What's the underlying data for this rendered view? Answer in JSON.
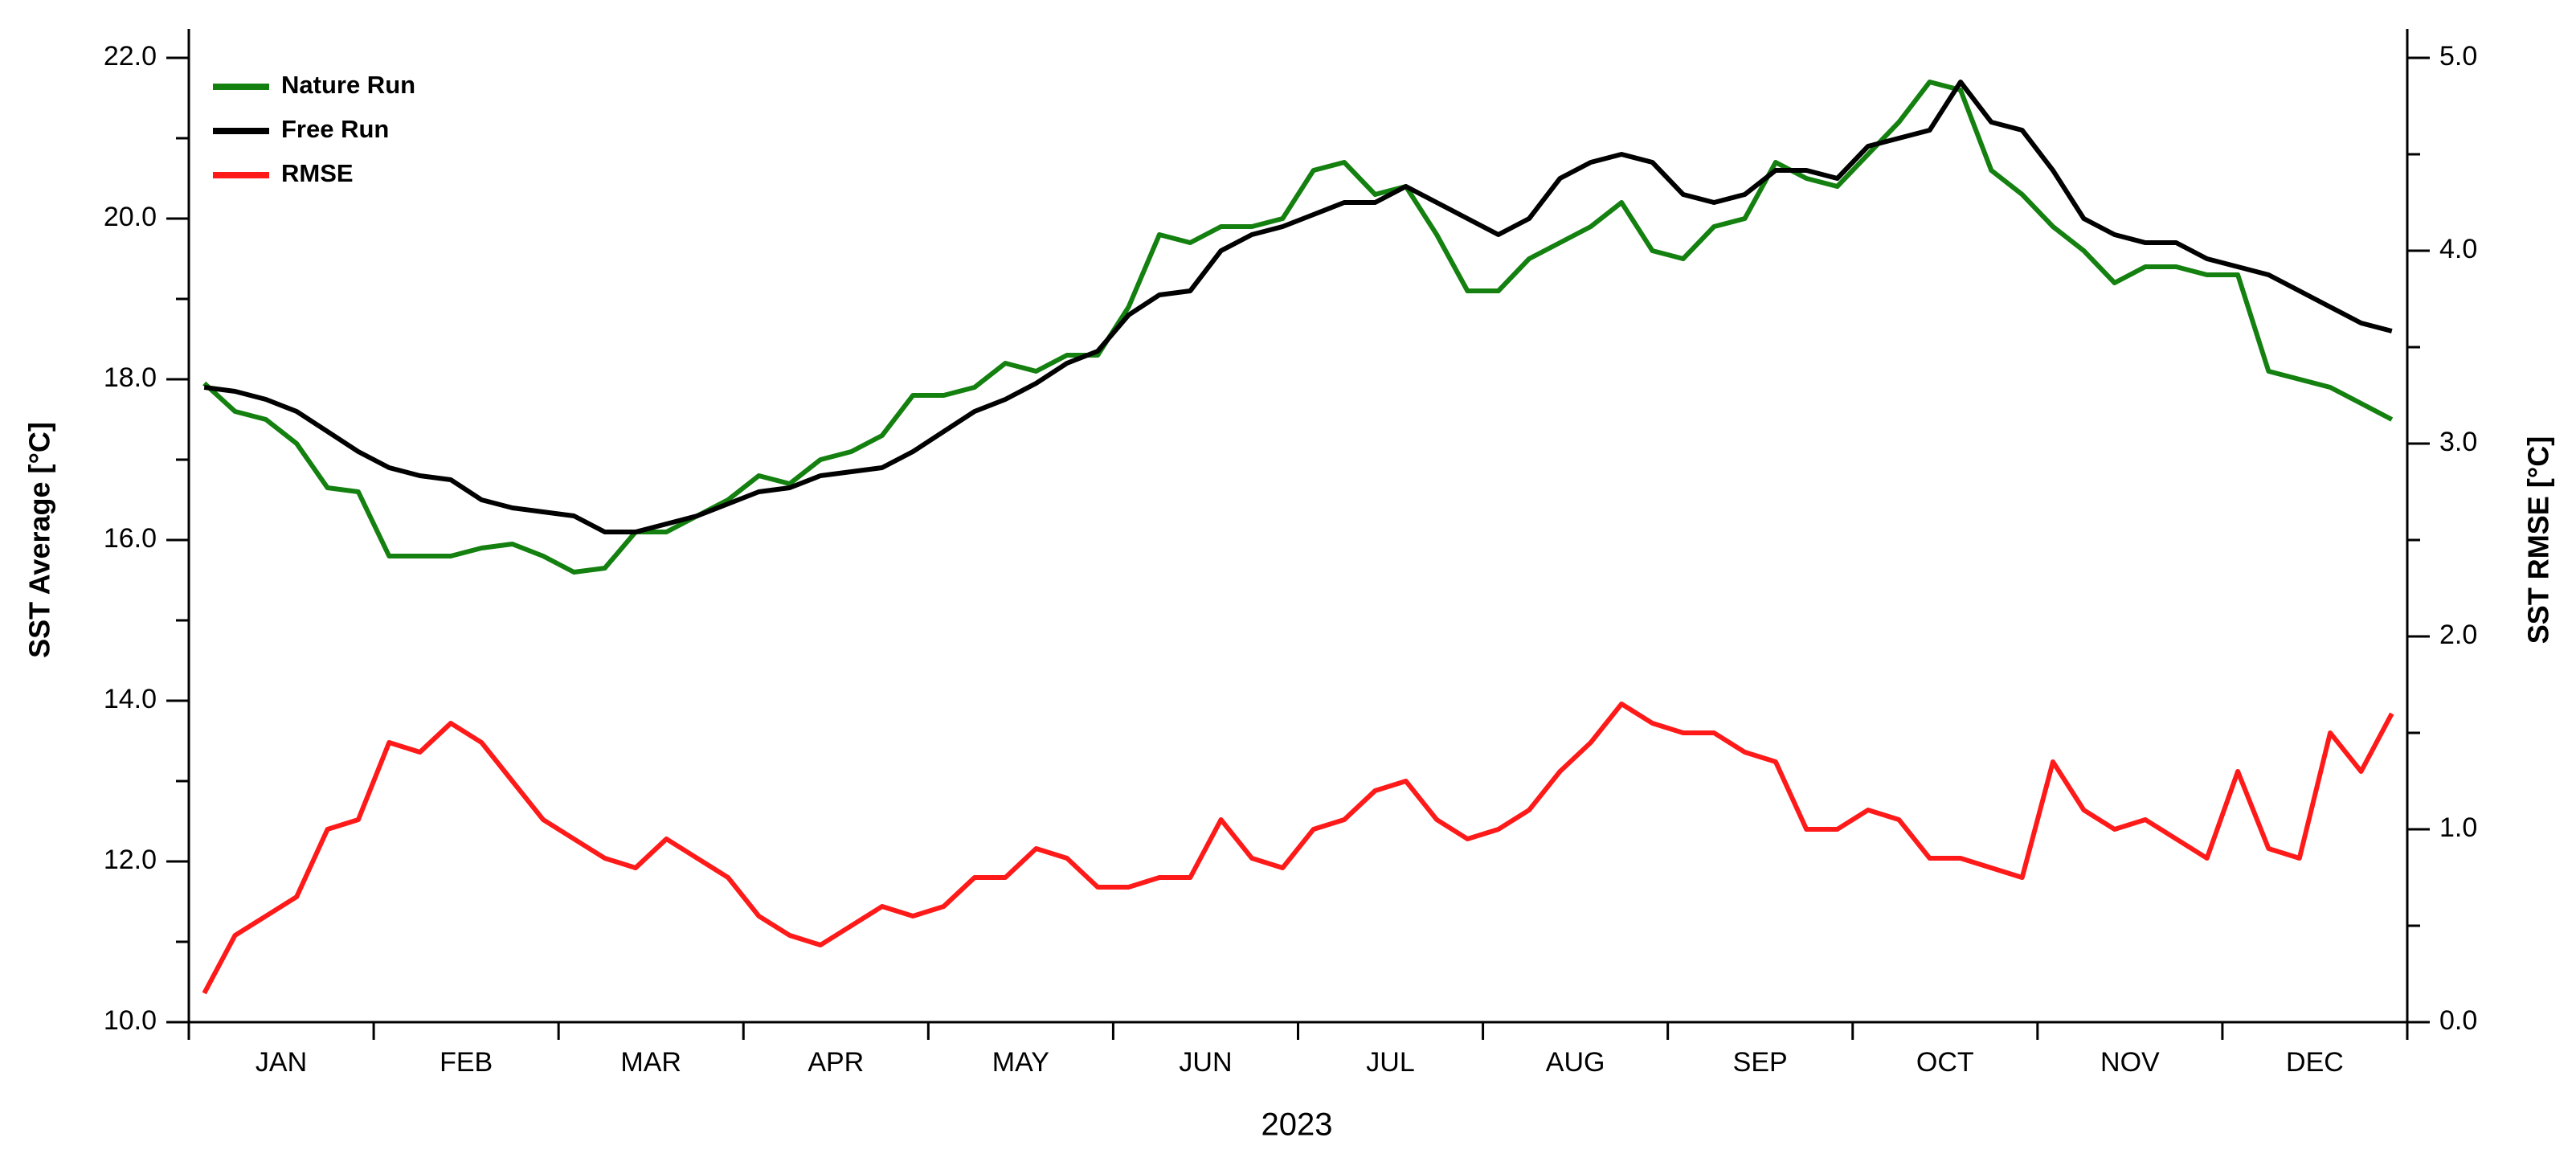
{
  "chart_data": {
    "type": "line",
    "xlabel": "2023",
    "ylabel": "SST Average [°C]",
    "y2label": "SST RMSE [°C]",
    "categories": [
      "JAN",
      null,
      null,
      null,
      null,
      null,
      "FEB",
      null,
      null,
      null,
      null,
      null,
      "MAR",
      null,
      null,
      null,
      null,
      null,
      "APR",
      null,
      null,
      null,
      null,
      null,
      "MAY",
      null,
      null,
      null,
      null,
      null,
      "JUN",
      null,
      null,
      null,
      null,
      null,
      "JUL",
      null,
      null,
      null,
      null,
      null,
      "AUG",
      null,
      null,
      null,
      null,
      null,
      "SEP",
      null,
      null,
      null,
      null,
      null,
      "OCT",
      null,
      null,
      null,
      null,
      null,
      "NOV",
      null,
      null,
      null,
      null,
      null,
      "DEC",
      null,
      null,
      null,
      null,
      null
    ],
    "series": [
      {
        "name": "Nature Run",
        "color": "#13800f",
        "values": [
          17.95,
          17.6,
          17.5,
          17.2,
          16.65,
          16.6,
          15.8,
          15.8,
          15.8,
          15.9,
          15.95,
          15.8,
          15.6,
          15.65,
          16.1,
          16.1,
          16.3,
          16.5,
          16.8,
          16.7,
          17.0,
          17.1,
          17.3,
          17.8,
          17.8,
          17.9,
          18.2,
          18.1,
          18.3,
          18.3,
          18.9,
          19.8,
          19.7,
          19.9,
          19.9,
          20.0,
          20.6,
          20.7,
          20.3,
          20.4,
          19.8,
          19.1,
          19.1,
          19.5,
          19.7,
          19.9,
          20.2,
          19.6,
          19.5,
          19.9,
          20.0,
          20.7,
          20.5,
          20.4,
          20.8,
          21.2,
          21.7,
          21.6,
          20.6,
          20.3,
          19.9,
          19.6,
          19.2,
          19.4,
          19.4,
          19.3,
          19.3,
          18.1,
          18.0,
          17.9,
          17.7,
          17.5
        ]
      },
      {
        "name": "Free Run",
        "color": "#000000",
        "values": [
          17.9,
          17.85,
          17.75,
          17.6,
          17.35,
          17.1,
          16.9,
          16.8,
          16.75,
          16.5,
          16.4,
          16.35,
          16.3,
          16.1,
          16.1,
          16.2,
          16.3,
          16.45,
          16.6,
          16.65,
          16.8,
          16.85,
          16.9,
          17.1,
          17.35,
          17.6,
          17.75,
          17.95,
          18.2,
          18.35,
          18.8,
          19.05,
          19.1,
          19.6,
          19.8,
          19.9,
          20.05,
          20.2,
          20.2,
          20.4,
          20.2,
          20.0,
          19.8,
          20.0,
          20.5,
          20.7,
          20.8,
          20.7,
          20.3,
          20.2,
          20.3,
          20.6,
          20.6,
          20.5,
          20.9,
          21.0,
          21.1,
          21.7,
          21.2,
          21.1,
          20.6,
          20.0,
          19.8,
          19.7,
          19.7,
          19.5,
          19.4,
          19.3,
          19.1,
          18.9,
          18.7,
          18.6
        ]
      },
      {
        "name": "RMSE",
        "color": "#ff1a1a",
        "axis": "y2",
        "values": [
          0.15,
          0.45,
          0.55,
          0.65,
          1.0,
          1.05,
          1.45,
          1.4,
          1.55,
          1.45,
          1.25,
          1.05,
          0.95,
          0.85,
          0.8,
          0.95,
          0.85,
          0.75,
          0.55,
          0.45,
          0.4,
          0.5,
          0.6,
          0.55,
          0.6,
          0.75,
          0.75,
          0.9,
          0.85,
          0.7,
          0.7,
          0.75,
          0.75,
          1.05,
          0.85,
          0.8,
          1.0,
          1.05,
          1.2,
          1.25,
          1.05,
          0.95,
          1.0,
          1.1,
          1.3,
          1.45,
          1.65,
          1.55,
          1.5,
          1.5,
          1.4,
          1.35,
          1.0,
          1.0,
          1.1,
          1.05,
          0.85,
          0.85,
          0.8,
          0.75,
          1.35,
          1.1,
          1.0,
          1.05,
          0.95,
          0.85,
          1.3,
          0.9,
          0.85,
          1.5,
          1.3,
          1.6
        ]
      }
    ],
    "ylim": [
      10,
      22
    ],
    "yticks": [
      {
        "value": 10,
        "label": "10.0"
      },
      {
        "value": 12,
        "label": "12.0"
      },
      {
        "value": 14,
        "label": "14.0"
      },
      {
        "value": 16,
        "label": "16.0"
      },
      {
        "value": 18,
        "label": "18.0"
      },
      {
        "value": 20,
        "label": "20.0"
      },
      {
        "value": 22,
        "label": "22.0"
      }
    ],
    "y2lim": [
      0,
      5
    ],
    "y2ticks": [
      {
        "value": 0,
        "label": "0.0"
      },
      {
        "value": 1,
        "label": "1.0"
      },
      {
        "value": 2,
        "label": "2.0"
      },
      {
        "value": 3,
        "label": "3.0"
      },
      {
        "value": 4,
        "label": "4.0"
      },
      {
        "value": 5,
        "label": "5.0"
      }
    ],
    "grid": false,
    "legend": "upper left"
  }
}
